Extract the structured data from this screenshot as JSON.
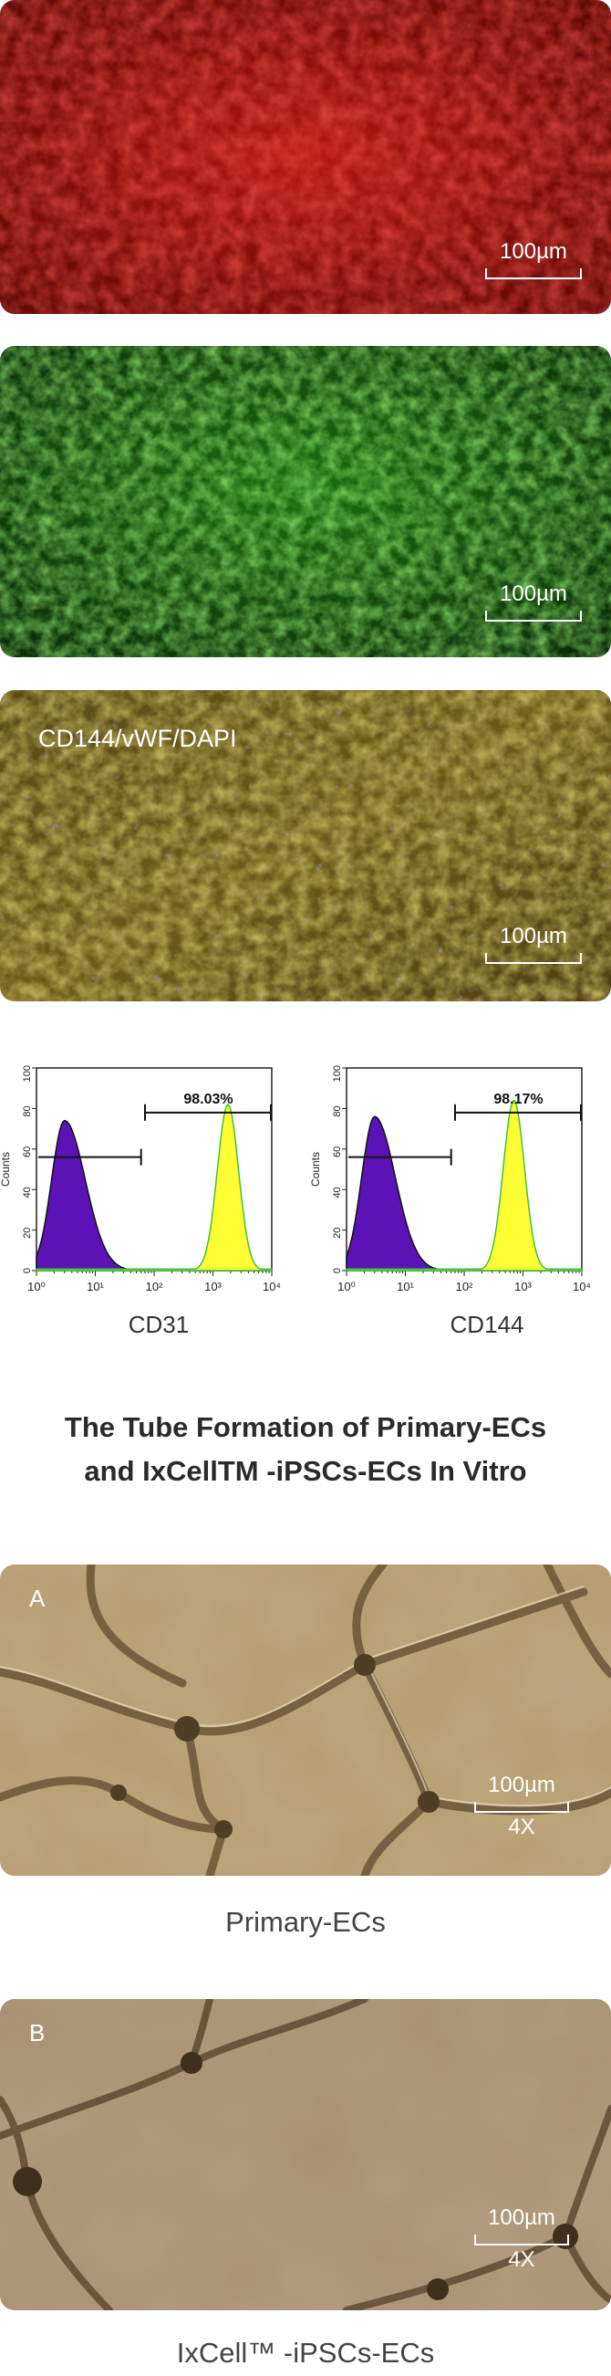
{
  "panels": {
    "red": {
      "scale_label": "100µm",
      "color": "#c81b12"
    },
    "green": {
      "scale_label": "100µm",
      "color": "#3aa31c"
    },
    "merge": {
      "scale_label": "100µm",
      "label": "CD144/vWF/DAPI"
    }
  },
  "chart_data": [
    {
      "type": "area",
      "xlabel": "CD31",
      "ylabel": "Counts",
      "x_scale": "log",
      "xlim": [
        1,
        10000
      ],
      "ylim": [
        0,
        100
      ],
      "x_ticks": [
        "10⁰",
        "10¹",
        "10²",
        "10³",
        "10⁴"
      ],
      "y_ticks": [
        "0",
        "20",
        "40",
        "60",
        "80",
        "100"
      ],
      "gate_label": "98.03%",
      "series": [
        {
          "color": "#5b13b8",
          "peak_x": 3,
          "peak_y": 74
        },
        {
          "color": "#ffff33",
          "peak_x": 1800,
          "peak_y": 82
        }
      ]
    },
    {
      "type": "area",
      "xlabel": "CD144",
      "ylabel": "Counts",
      "x_scale": "log",
      "xlim": [
        1,
        10000
      ],
      "ylim": [
        0,
        100
      ],
      "x_ticks": [
        "10⁰",
        "10¹",
        "10²",
        "10³",
        "10⁴"
      ],
      "y_ticks": [
        "0",
        "20",
        "40",
        "60",
        "80",
        "100"
      ],
      "gate_label": "98.17%",
      "series": [
        {
          "color": "#5b13b8",
          "peak_x": 3,
          "peak_y": 76
        },
        {
          "color": "#ffff33",
          "peak_x": 700,
          "peak_y": 84
        }
      ]
    }
  ],
  "tube_section": {
    "title_line1": "The Tube Formation of Primary-ECs",
    "title_line2": "and IxCellTM -iPSCs-ECs In Vitro",
    "panel_a": {
      "label": "A",
      "scale_label": "100µm",
      "magnification": "4X",
      "caption": "Primary-ECs"
    },
    "panel_b": {
      "label": "B",
      "scale_label": "100µm",
      "magnification": "4X",
      "caption": "IxCell™ -iPSCs-ECs"
    }
  }
}
